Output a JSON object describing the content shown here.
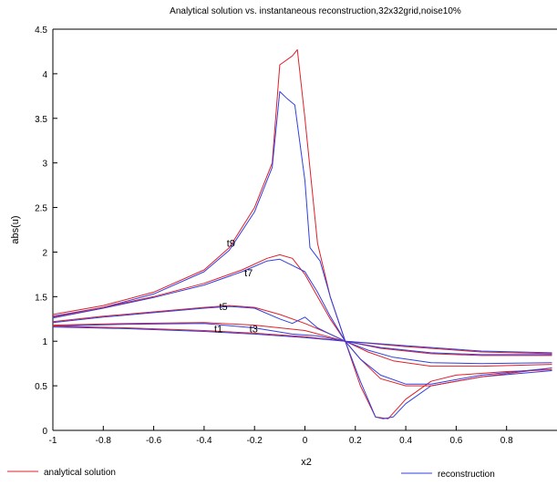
{
  "chart_data": {
    "type": "line",
    "title": "Analytical solution vs. instantaneous reconstruction,32x32grid,noise10%",
    "xlabel": "x2",
    "ylabel": "abs(u)",
    "xlim": [
      -1,
      1
    ],
    "ylim": [
      0,
      4.5
    ],
    "x_ticks": [
      "-1",
      "-0.8",
      "-0.6",
      "-0.4",
      "-0.2",
      "0",
      "0.2",
      "0.4",
      "0.6",
      "0.8"
    ],
    "y_ticks": [
      "0",
      "0.5",
      "1",
      "1.5",
      "2",
      "2.5",
      "3",
      "3.5",
      "4",
      "4.5"
    ],
    "grid": false,
    "legend_position": "bottom",
    "colors": {
      "analytical": "#e0202a",
      "reconstruction": "#3040e0"
    },
    "annotations": [
      {
        "text": "t9",
        "x": -0.31,
        "y": 2.1
      },
      {
        "text": "t7",
        "x": -0.24,
        "y": 1.77
      },
      {
        "text": "t5",
        "x": -0.34,
        "y": 1.39
      },
      {
        "text": "t1",
        "x": -0.36,
        "y": 1.14
      },
      {
        "text": "t3",
        "x": -0.22,
        "y": 1.14
      }
    ],
    "series": [
      {
        "name": "analytical solution",
        "curve": "t9",
        "kind": "analytical",
        "points": [
          [
            -1,
            1.3
          ],
          [
            -0.8,
            1.4
          ],
          [
            -0.6,
            1.55
          ],
          [
            -0.4,
            1.8
          ],
          [
            -0.3,
            2.05
          ],
          [
            -0.2,
            2.5
          ],
          [
            -0.13,
            3.0
          ],
          [
            -0.1,
            4.1
          ],
          [
            -0.05,
            4.2
          ],
          [
            -0.03,
            4.27
          ],
          [
            0,
            3.5
          ],
          [
            0.05,
            2.1
          ],
          [
            0.1,
            1.5
          ],
          [
            0.16,
            1.0
          ],
          [
            0.22,
            0.5
          ],
          [
            0.28,
            0.15
          ],
          [
            0.33,
            0.13
          ],
          [
            0.4,
            0.35
          ],
          [
            0.5,
            0.55
          ],
          [
            0.6,
            0.62
          ],
          [
            0.8,
            0.66
          ],
          [
            0.98,
            0.68
          ]
        ]
      },
      {
        "name": "reconstruction",
        "curve": "t9",
        "kind": "reconstruction",
        "points": [
          [
            -1,
            1.28
          ],
          [
            -0.8,
            1.38
          ],
          [
            -0.6,
            1.53
          ],
          [
            -0.4,
            1.78
          ],
          [
            -0.3,
            2.02
          ],
          [
            -0.2,
            2.45
          ],
          [
            -0.13,
            2.95
          ],
          [
            -0.1,
            3.8
          ],
          [
            -0.07,
            3.72
          ],
          [
            -0.04,
            3.65
          ],
          [
            0,
            2.8
          ],
          [
            0.02,
            2.05
          ],
          [
            0.06,
            1.9
          ],
          [
            0.1,
            1.5
          ],
          [
            0.16,
            1.0
          ],
          [
            0.22,
            0.55
          ],
          [
            0.28,
            0.15
          ],
          [
            0.31,
            0.13
          ],
          [
            0.35,
            0.15
          ],
          [
            0.4,
            0.3
          ],
          [
            0.5,
            0.5
          ],
          [
            0.7,
            0.6
          ],
          [
            0.98,
            0.67
          ]
        ]
      },
      {
        "name": "",
        "curve": "t7",
        "kind": "analytical",
        "points": [
          [
            -1,
            1.27
          ],
          [
            -0.8,
            1.38
          ],
          [
            -0.6,
            1.5
          ],
          [
            -0.4,
            1.65
          ],
          [
            -0.25,
            1.8
          ],
          [
            -0.15,
            1.93
          ],
          [
            -0.1,
            1.97
          ],
          [
            -0.05,
            1.93
          ],
          [
            0,
            1.75
          ],
          [
            0.05,
            1.5
          ],
          [
            0.1,
            1.25
          ],
          [
            0.16,
            1.0
          ],
          [
            0.22,
            0.8
          ],
          [
            0.3,
            0.58
          ],
          [
            0.4,
            0.5
          ],
          [
            0.5,
            0.5
          ],
          [
            0.7,
            0.6
          ],
          [
            0.98,
            0.7
          ]
        ]
      },
      {
        "name": "",
        "curve": "t7",
        "kind": "reconstruction",
        "points": [
          [
            -1,
            1.26
          ],
          [
            -0.8,
            1.37
          ],
          [
            -0.6,
            1.49
          ],
          [
            -0.4,
            1.63
          ],
          [
            -0.25,
            1.78
          ],
          [
            -0.15,
            1.9
          ],
          [
            -0.1,
            1.92
          ],
          [
            -0.05,
            1.85
          ],
          [
            0,
            1.78
          ],
          [
            0.05,
            1.55
          ],
          [
            0.1,
            1.28
          ],
          [
            0.16,
            1.0
          ],
          [
            0.22,
            0.8
          ],
          [
            0.3,
            0.62
          ],
          [
            0.4,
            0.52
          ],
          [
            0.5,
            0.52
          ],
          [
            0.7,
            0.62
          ],
          [
            0.98,
            0.7
          ]
        ]
      },
      {
        "name": "",
        "curve": "t5",
        "kind": "analytical",
        "points": [
          [
            -1,
            1.22
          ],
          [
            -0.8,
            1.28
          ],
          [
            -0.6,
            1.33
          ],
          [
            -0.4,
            1.38
          ],
          [
            -0.3,
            1.4
          ],
          [
            -0.2,
            1.38
          ],
          [
            -0.1,
            1.3
          ],
          [
            0,
            1.2
          ],
          [
            0.1,
            1.08
          ],
          [
            0.16,
            1.0
          ],
          [
            0.25,
            0.88
          ],
          [
            0.35,
            0.78
          ],
          [
            0.5,
            0.72
          ],
          [
            0.7,
            0.72
          ],
          [
            0.98,
            0.74
          ]
        ]
      },
      {
        "name": "",
        "curve": "t5",
        "kind": "reconstruction",
        "points": [
          [
            -1,
            1.21
          ],
          [
            -0.8,
            1.27
          ],
          [
            -0.6,
            1.32
          ],
          [
            -0.4,
            1.37
          ],
          [
            -0.3,
            1.39
          ],
          [
            -0.2,
            1.37
          ],
          [
            -0.1,
            1.25
          ],
          [
            -0.05,
            1.2
          ],
          [
            0,
            1.27
          ],
          [
            0.05,
            1.15
          ],
          [
            0.1,
            1.08
          ],
          [
            0.16,
            1.0
          ],
          [
            0.25,
            0.9
          ],
          [
            0.35,
            0.82
          ],
          [
            0.5,
            0.76
          ],
          [
            0.7,
            0.75
          ],
          [
            0.98,
            0.76
          ]
        ]
      },
      {
        "name": "",
        "curve": "t3",
        "kind": "analytical",
        "points": [
          [
            -1,
            1.18
          ],
          [
            -0.7,
            1.2
          ],
          [
            -0.4,
            1.21
          ],
          [
            -0.2,
            1.18
          ],
          [
            0,
            1.12
          ],
          [
            0.16,
            1.0
          ],
          [
            0.3,
            0.92
          ],
          [
            0.5,
            0.86
          ],
          [
            0.7,
            0.84
          ],
          [
            0.98,
            0.84
          ]
        ]
      },
      {
        "name": "",
        "curve": "t3",
        "kind": "reconstruction",
        "points": [
          [
            -1,
            1.17
          ],
          [
            -0.7,
            1.19
          ],
          [
            -0.4,
            1.2
          ],
          [
            -0.2,
            1.15
          ],
          [
            -0.05,
            1.08
          ],
          [
            0.05,
            1.06
          ],
          [
            0.16,
            1.0
          ],
          [
            0.3,
            0.93
          ],
          [
            0.5,
            0.87
          ],
          [
            0.7,
            0.85
          ],
          [
            0.98,
            0.85
          ]
        ]
      },
      {
        "name": "",
        "curve": "t1",
        "kind": "analytical",
        "points": [
          [
            -1,
            1.17
          ],
          [
            -0.7,
            1.15
          ],
          [
            -0.4,
            1.12
          ],
          [
            -0.2,
            1.09
          ],
          [
            0,
            1.05
          ],
          [
            0.16,
            1.0
          ],
          [
            0.4,
            0.94
          ],
          [
            0.7,
            0.88
          ],
          [
            0.98,
            0.86
          ]
        ]
      },
      {
        "name": "",
        "curve": "t1",
        "kind": "reconstruction",
        "points": [
          [
            -1,
            1.16
          ],
          [
            -0.7,
            1.14
          ],
          [
            -0.4,
            1.11
          ],
          [
            -0.2,
            1.08
          ],
          [
            0,
            1.04
          ],
          [
            0.16,
            1.0
          ],
          [
            0.4,
            0.95
          ],
          [
            0.7,
            0.89
          ],
          [
            0.98,
            0.87
          ]
        ]
      }
    ]
  }
}
